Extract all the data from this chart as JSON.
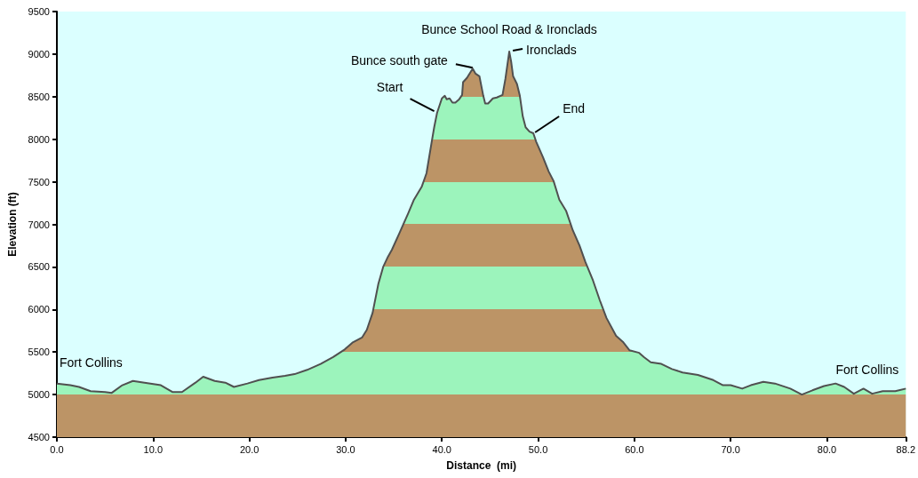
{
  "chart_data": {
    "type": "area",
    "title": "Bunce School Road & Ironclads",
    "xlabel": "Distance  (mi)",
    "ylabel": "Elevation (ft)",
    "x": [
      0,
      1.4,
      2.3,
      3.5,
      5.0,
      5.7,
      6.8,
      7.9,
      9.1,
      10.8,
      12.0,
      13.0,
      14.4,
      15.2,
      16.4,
      17.5,
      18.4,
      19.8,
      21.0,
      22.4,
      23.7,
      24.7,
      26.0,
      27.4,
      28.7,
      29.9,
      30.7,
      31.7,
      32.2,
      32.8,
      33.4,
      33.9,
      34.4,
      34.8,
      35.6,
      36.5,
      37.1,
      37.9,
      38.4,
      38.9,
      39.2,
      39.5,
      40.0,
      40.3,
      40.5,
      40.8,
      41.1,
      41.4,
      41.8,
      42.1,
      42.2,
      42.6,
      43.2,
      43.5,
      43.9,
      44.3,
      44.5,
      44.8,
      45.3,
      45.7,
      46.3,
      46.6,
      47.0,
      47.2,
      47.4,
      47.8,
      48.1,
      48.4,
      48.7,
      49.1,
      49.5,
      49.8,
      50.5,
      51.1,
      51.6,
      52.2,
      52.9,
      53.6,
      54.3,
      54.9,
      55.7,
      56.4,
      57.1,
      58.1,
      58.8,
      59.5,
      60.5,
      61.0,
      61.7,
      62.8,
      63.9,
      65.0,
      66.6,
      68.2,
      69.2,
      70.0,
      71.2,
      72.1,
      73.4,
      74.6,
      76.2,
      77.4,
      78.5,
      79.7,
      80.9,
      81.8,
      82.8,
      83.8,
      84.7,
      85.8,
      87.1,
      88.2
    ],
    "series": [
      {
        "color": "#9cf4bc",
        "values": [
          5130,
          5110,
          5090,
          5040,
          5030,
          5020,
          5110,
          5160,
          5140,
          5110,
          5030,
          5030,
          5140,
          5210,
          5160,
          5140,
          5090,
          5130,
          5170,
          5200,
          5220,
          5240,
          5290,
          5360,
          5440,
          5530,
          5610,
          5670,
          5760,
          5960,
          6300,
          6500,
          6620,
          6700,
          6900,
          7130,
          7290,
          7440,
          7600,
          7940,
          8140,
          8310,
          8480,
          8510,
          8470,
          8480,
          8430,
          8430,
          8470,
          8520,
          8670,
          8720,
          8830,
          8770,
          8740,
          8510,
          8420,
          8420,
          8480,
          8490,
          8520,
          8710,
          9030,
          8910,
          8740,
          8650,
          8510,
          8270,
          8140,
          8090,
          8070,
          7970,
          7790,
          7620,
          7510,
          7290,
          7160,
          6930,
          6750,
          6560,
          6340,
          6110,
          5900,
          5690,
          5620,
          5520,
          5490,
          5440,
          5380,
          5360,
          5300,
          5260,
          5230,
          5170,
          5110,
          5110,
          5070,
          5110,
          5150,
          5130,
          5070,
          5000,
          5050,
          5100,
          5130,
          5090,
          5010,
          5070,
          5010,
          5040,
          5040,
          5070
        ]
      }
    ],
    "xlim": [
      0,
      88.2
    ],
    "xticks": [
      {
        "value": 0,
        "label": "0.0"
      },
      {
        "value": 10,
        "label": "10.0"
      },
      {
        "value": 20,
        "label": "20.0"
      },
      {
        "value": 30,
        "label": "30.0"
      },
      {
        "value": 40,
        "label": "40.0"
      },
      {
        "value": 50,
        "label": "50.0"
      },
      {
        "value": 60,
        "label": "60.0"
      },
      {
        "value": 70,
        "label": "70.0"
      },
      {
        "value": 80,
        "label": "80.0"
      },
      88.2
    ],
    "ylim": [
      4500,
      9500
    ],
    "yticks": [
      4500,
      5000,
      5500,
      6000,
      6500,
      7000,
      7500,
      8000,
      8500,
      9000,
      9500
    ],
    "annotations": [
      {
        "text": "Start",
        "x": 39.2,
        "y": 8330
      },
      {
        "text": "Bunce south gate",
        "x": 43.2,
        "y": 8830
      },
      {
        "text": "Ironclads",
        "x": 47.0,
        "y": 9030
      },
      {
        "text": "End",
        "x": 49.5,
        "y": 8070
      },
      {
        "text": "Fort Collins",
        "x": 0,
        "y": 5130
      },
      {
        "text": "Fort Collins",
        "x": 88.2,
        "y": 5070
      }
    ]
  }
}
